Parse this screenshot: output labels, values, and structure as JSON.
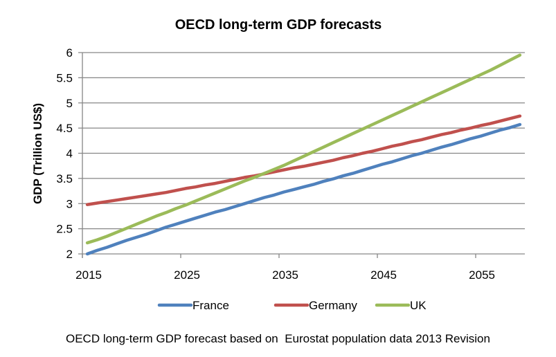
{
  "chart_data": {
    "type": "line",
    "title": "OECD long-term GDP forecasts",
    "xlabel": "",
    "ylabel": "GDP (Trillion US$)",
    "ylim": [
      2,
      6
    ],
    "yticks": [
      "2",
      "2.5",
      "3",
      "3.5",
      "4",
      "4.5",
      "5",
      "5.5",
      "6"
    ],
    "xticks": [
      "2015",
      "2025",
      "2035",
      "2045",
      "2055"
    ],
    "grid": true,
    "legend_position": "bottom",
    "x": [
      2015,
      2016,
      2017,
      2018,
      2019,
      2020,
      2021,
      2022,
      2023,
      2024,
      2025,
      2026,
      2027,
      2028,
      2029,
      2030,
      2031,
      2032,
      2033,
      2034,
      2035,
      2036,
      2037,
      2038,
      2039,
      2040,
      2041,
      2042,
      2043,
      2044,
      2045,
      2046,
      2047,
      2048,
      2049,
      2050,
      2051,
      2052,
      2053,
      2054,
      2055,
      2056,
      2057,
      2058,
      2059
    ],
    "series": [
      {
        "name": "France",
        "color": "#4F81BD",
        "values": [
          2.0,
          2.07,
          2.13,
          2.2,
          2.27,
          2.33,
          2.39,
          2.46,
          2.53,
          2.59,
          2.65,
          2.71,
          2.77,
          2.83,
          2.88,
          2.94,
          3.0,
          3.06,
          3.12,
          3.17,
          3.23,
          3.28,
          3.33,
          3.38,
          3.44,
          3.49,
          3.55,
          3.6,
          3.66,
          3.72,
          3.78,
          3.83,
          3.89,
          3.95,
          4.0,
          4.06,
          4.12,
          4.17,
          4.23,
          4.29,
          4.34,
          4.4,
          4.46,
          4.51,
          4.57
        ]
      },
      {
        "name": "Germany",
        "color": "#C0504D",
        "values": [
          2.98,
          3.01,
          3.04,
          3.07,
          3.1,
          3.13,
          3.16,
          3.19,
          3.22,
          3.26,
          3.3,
          3.33,
          3.37,
          3.4,
          3.44,
          3.48,
          3.52,
          3.55,
          3.59,
          3.63,
          3.67,
          3.71,
          3.74,
          3.78,
          3.82,
          3.86,
          3.91,
          3.95,
          4.0,
          4.04,
          4.09,
          4.14,
          4.18,
          4.23,
          4.27,
          4.32,
          4.37,
          4.41,
          4.46,
          4.5,
          4.55,
          4.59,
          4.64,
          4.69,
          4.74
        ]
      },
      {
        "name": "UK",
        "color": "#9BBB59",
        "values": [
          2.22,
          2.28,
          2.35,
          2.43,
          2.51,
          2.59,
          2.67,
          2.75,
          2.82,
          2.9,
          2.97,
          3.05,
          3.13,
          3.21,
          3.29,
          3.37,
          3.45,
          3.52,
          3.6,
          3.68,
          3.76,
          3.85,
          3.94,
          4.03,
          4.12,
          4.21,
          4.3,
          4.39,
          4.48,
          4.57,
          4.66,
          4.75,
          4.84,
          4.93,
          5.02,
          5.11,
          5.2,
          5.29,
          5.38,
          5.47,
          5.56,
          5.65,
          5.75,
          5.85,
          5.95
        ]
      }
    ]
  },
  "caption": "OECD long-term GDP forecast based on  Eurostat population data 2013 Revision"
}
